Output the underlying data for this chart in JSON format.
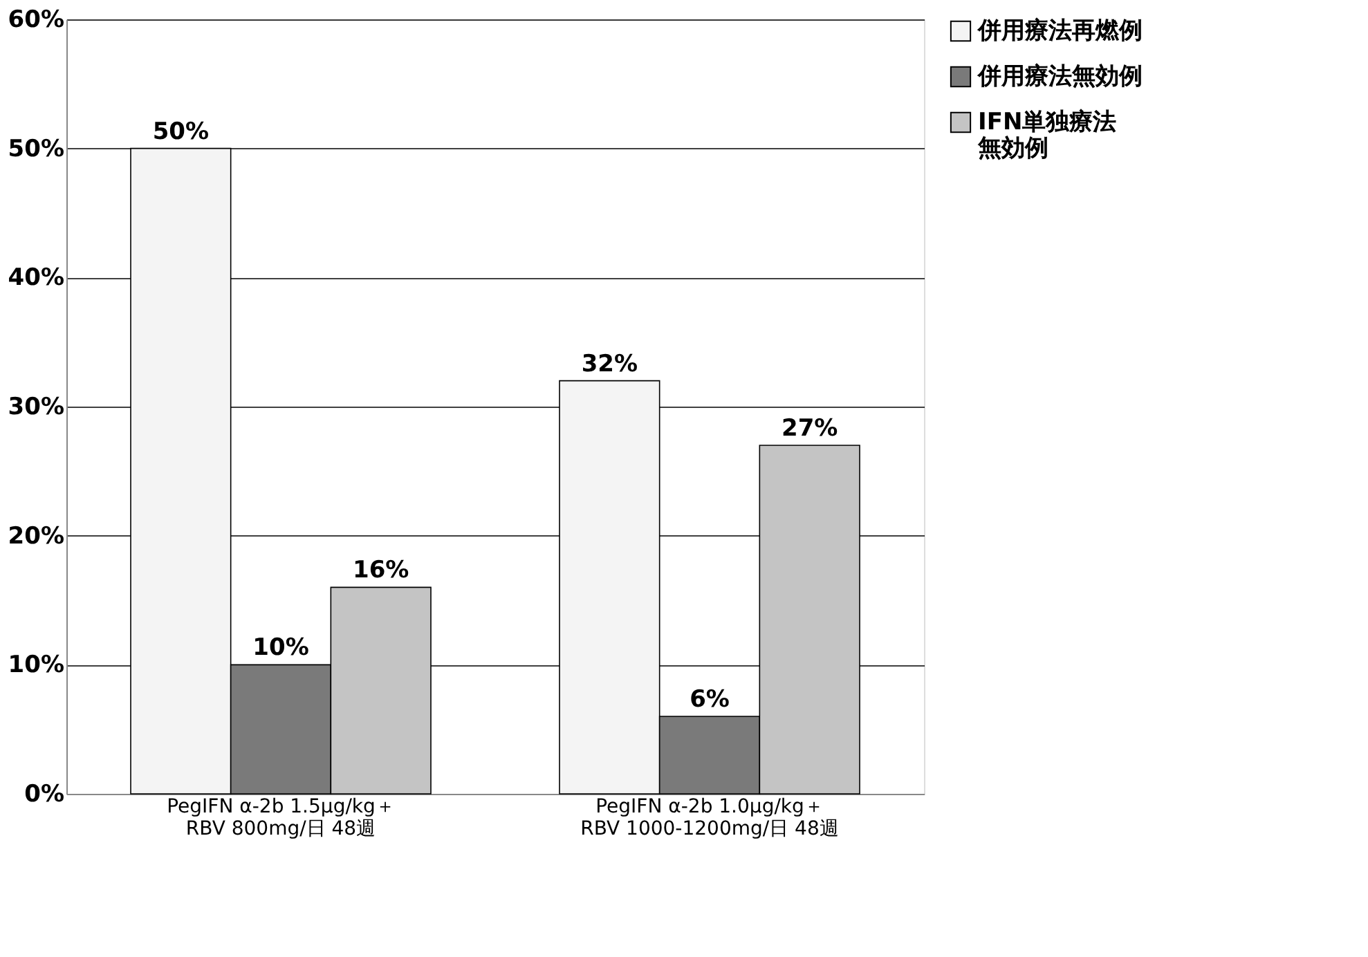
{
  "chart_data": {
    "type": "bar",
    "categories": [
      "PegIFN α-2b 1.5μg/kg＋\nRBV 800mg/日 48週",
      "PegIFN α-2b 1.0μg/kg＋\nRBV 1000-1200mg/日 48週"
    ],
    "series": [
      {
        "name": "併用療法再燃例",
        "color": "#f4f4f4",
        "values": [
          50,
          32
        ],
        "value_labels": [
          "50%",
          "32%"
        ]
      },
      {
        "name": "併用療法無効例",
        "color": "#7a7a7a",
        "values": [
          10,
          6
        ],
        "value_labels": [
          "10%",
          "6%"
        ]
      },
      {
        "name": "IFN単独療法無効例",
        "color": "#c4c4c4",
        "values": [
          16,
          27
        ],
        "value_labels": [
          "16%",
          "27%"
        ]
      }
    ],
    "ylim": [
      0,
      60
    ],
    "yticks": [
      {
        "value": 0,
        "label": "0%"
      },
      {
        "value": 10,
        "label": "10%"
      },
      {
        "value": 20,
        "label": "20%"
      },
      {
        "value": 30,
        "label": "30%"
      },
      {
        "value": 40,
        "label": "40%"
      },
      {
        "value": 50,
        "label": "50%"
      },
      {
        "value": 60,
        "label": "60%"
      }
    ],
    "grid": "y",
    "legend": "right"
  }
}
